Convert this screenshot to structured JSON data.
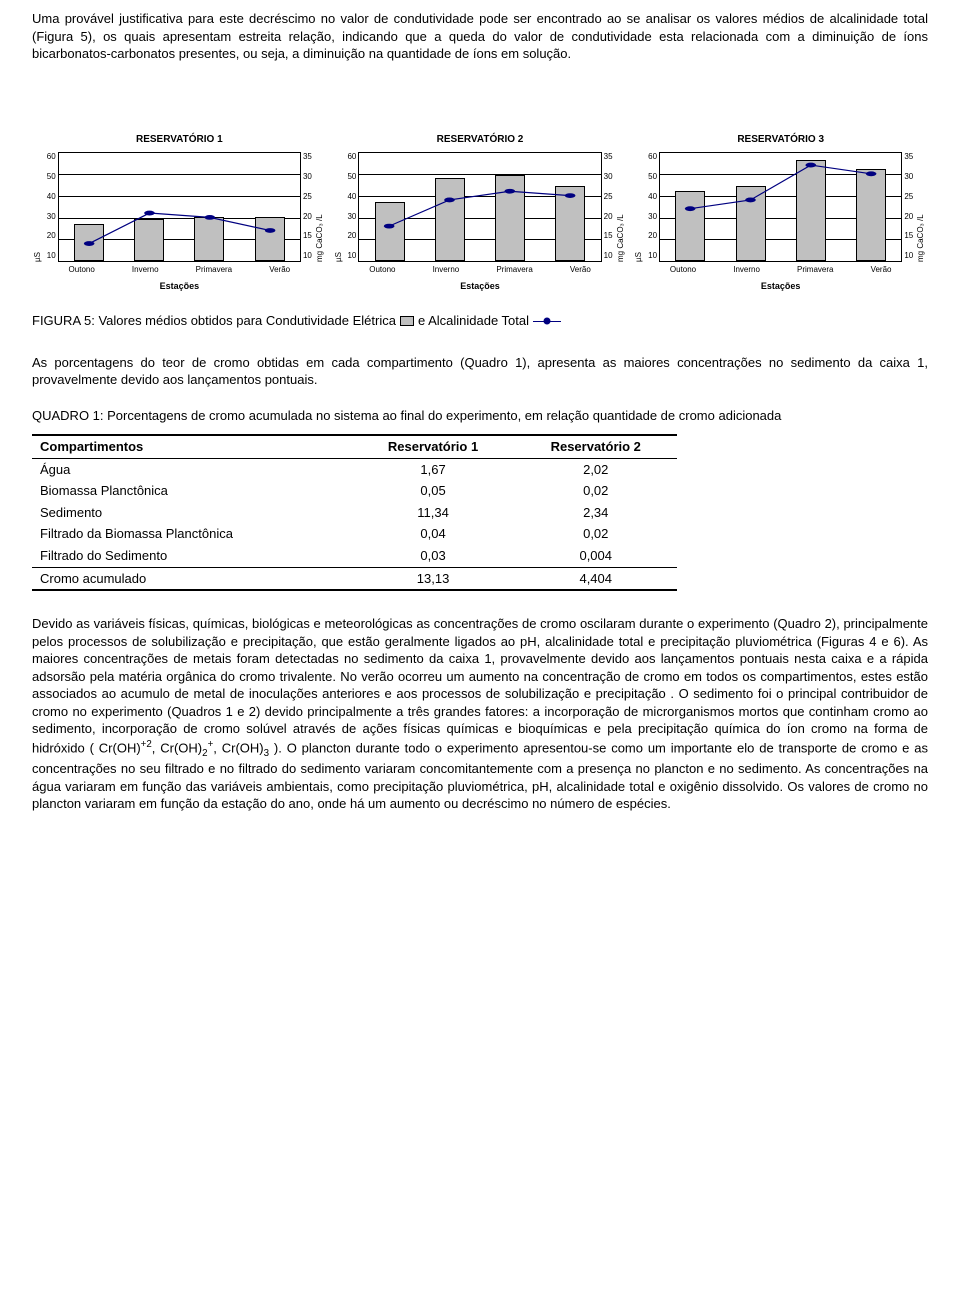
{
  "paras": {
    "p1": "Uma provável justificativa para este decréscimo no valor de condutividade pode ser encontrado ao se analisar os valores médios de alcalinidade total (Figura 5), os quais apresentam estreita relação, indicando que a queda do valor de condutividade esta relacionada com a diminuição de íons bicarbonatos-carbonatos presentes, ou seja, a diminuição na quantidade de íons em solução.",
    "p2": "As porcentagens do teor de cromo obtidas em cada compartimento (Quadro 1), apresenta as maiores concentrações no sedimento da caixa 1, provavelmente devido aos lançamentos pontuais.",
    "p3a": "Devido as variáveis físicas, químicas, biológicas e meteorológicas as concentrações de cromo oscilaram durante o experimento (Quadro 2), principalmente pelos processos de solubilização e precipitação, que estão geralmente ligados ao pH, alcalinidade total e precipitação pluviométrica (Figuras 4 e 6).  As maiores concentrações de metais foram detectadas no sedimento da caixa 1, provavelmente devido aos lançamentos pontuais nesta caixa e a rápida adsorsão pela matéria orgânica do cromo trivalente.  No verão ocorreu um aumento na concentração de cromo em todos os compartimentos, estes estão associados ao acumulo de metal de inoculações anteriores e aos processos de solubilização e precipitação .  O sedimento foi o principal contribuidor de cromo  no experimento (Quadros 1 e 2) devido principalmente a três grandes fatores:  a incorporação de microrganismos mortos que continham cromo ao sedimento, incorporação de cromo solúvel através de ações físicas químicas e bioquímicas e pela  precipitação química do íon cromo na forma de hidróxido ( Cr(OH)",
    "p3b": ", Cr(OH)",
    "p3c": ", Cr(OH)",
    "p3d": " ).   O plancton durante todo o experimento apresentou-se como um importante elo de transporte de cromo e as concentrações no seu filtrado e no filtrado do sedimento variaram concomitantemente com a presença  no plancton e no sedimento.  As concentrações na água variaram em função das variáveis ambientais, como precipitação pluviométrica, pH, alcalinidade total e oxigênio dissolvido. Os valores de cromo no plancton variaram em função da estação do ano, onde há um aumento ou decréscimo no número de espécies."
  },
  "fig5": {
    "caption_a": "FIGURA 5: Valores médios obtidos para Condutividade Elétrica",
    "caption_b": "e Alcalinidade Total",
    "x_title": "Estações",
    "categories": [
      "Outono",
      "Inverno",
      "Primavera",
      "Verão"
    ],
    "left_label": "µS",
    "right_label": "mg CaCO₃ /L",
    "left_ticks": [
      "60",
      "50",
      "40",
      "30",
      "20",
      "10"
    ],
    "right_ticks": [
      "35",
      "30",
      "25",
      "20",
      "15",
      "10"
    ],
    "left_min": 10,
    "left_max": 60,
    "right_min": 10,
    "right_max": 35,
    "bar_color": "#c0c0c0",
    "line_color": "#000080",
    "grid_color": "#000000",
    "charts": [
      {
        "title": "RESERVATÓRIO 1",
        "bars": [
          27,
          29,
          30,
          30
        ],
        "line": [
          14,
          21,
          20,
          17
        ]
      },
      {
        "title": "RESERVATÓRIO 2",
        "bars": [
          37,
          48,
          49,
          44
        ],
        "line": [
          18,
          24,
          26,
          25
        ]
      },
      {
        "title": "RESERVATÓRIO 3",
        "bars": [
          42,
          44,
          56,
          52
        ],
        "line": [
          22,
          24,
          32,
          30
        ]
      }
    ]
  },
  "quadro1": {
    "caption": "QUADRO 1: Porcentagens de cromo acumulada no sistema ao final do experimento, em relação quantidade de cromo adicionada",
    "columns": [
      "Compartimentos",
      "Reservatório 1",
      "Reservatório 2"
    ],
    "rows": [
      [
        "Água",
        "1,67",
        "2,02"
      ],
      [
        "Biomassa Planctônica",
        "0,05",
        "0,02"
      ],
      [
        "Sedimento",
        "11,34",
        "2,34"
      ],
      [
        "Filtrado da Biomassa  Planctônica",
        "0,04",
        "0,02"
      ],
      [
        "Filtrado do Sedimento",
        "0,03",
        "0,004"
      ]
    ],
    "total_row": [
      "Cromo acumulado",
      "13,13",
      "4,404"
    ]
  }
}
